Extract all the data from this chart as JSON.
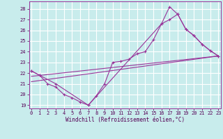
{
  "bg_color": "#c8ecec",
  "line_color": "#993399",
  "xlim": [
    -0.3,
    23.3
  ],
  "ylim": [
    18.7,
    28.7
  ],
  "yticks": [
    19,
    20,
    21,
    22,
    23,
    24,
    25,
    26,
    27,
    28
  ],
  "xticks": [
    0,
    1,
    2,
    3,
    4,
    5,
    6,
    7,
    8,
    9,
    10,
    11,
    12,
    13,
    14,
    15,
    16,
    17,
    18,
    19,
    20,
    21,
    22,
    23
  ],
  "curve1_x": [
    0,
    1,
    2,
    3,
    4,
    5,
    6,
    7,
    8,
    9,
    10,
    11,
    12,
    13,
    14,
    15,
    16,
    17,
    18,
    19,
    20,
    21,
    22,
    23
  ],
  "curve1_y": [
    22.2,
    21.8,
    21.0,
    20.7,
    20.0,
    19.7,
    19.3,
    19.0,
    19.9,
    21.0,
    23.0,
    23.1,
    23.3,
    23.8,
    24.0,
    25.1,
    26.6,
    27.0,
    27.5,
    26.1,
    25.5,
    24.7,
    24.1,
    23.6
  ],
  "curve2_x": [
    0,
    1,
    3,
    7,
    16,
    17,
    18,
    19,
    20,
    21,
    22,
    23
  ],
  "curve2_y": [
    22.2,
    21.8,
    21.0,
    19.0,
    26.6,
    28.2,
    27.5,
    26.1,
    25.5,
    24.7,
    24.1,
    23.6
  ],
  "trendline1_x": [
    0,
    23
  ],
  "trendline1_y": [
    21.2,
    23.6
  ],
  "trendline2_x": [
    0,
    23
  ],
  "trendline2_y": [
    21.7,
    23.6
  ],
  "xlabel": "Windchill (Refroidissement éolien,°C)",
  "xlabel_fontsize": 5.5,
  "tick_fontsize": 5,
  "tick_color": "#550055"
}
